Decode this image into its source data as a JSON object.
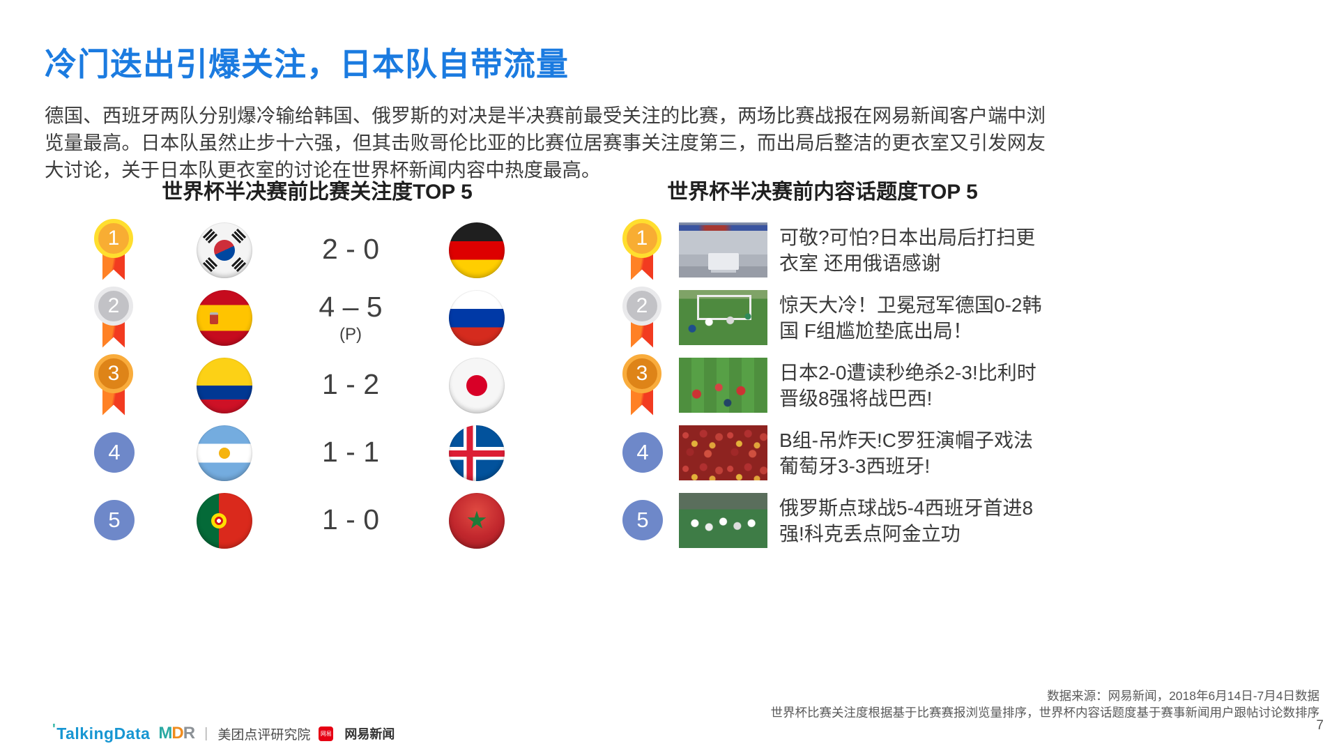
{
  "slide": {
    "title": "冷门迭出引爆关注，日本队自带流量",
    "body": "德国、西班牙两队分别爆冷输给韩国、俄罗斯的对决是半决赛前最受关注的比赛，两场比赛战报在网易新闻客户端中浏览量最高。日本队虽然止步十六强，但其击败哥伦比亚的比赛位居赛事关注度第三，而出局后整洁的更衣室又引发网友大讨论，关于日本队更衣室的讨论在世界杯新闻内容中热度最高。",
    "page_number": "7"
  },
  "left_panel": {
    "title": "世界杯半决赛前比赛关注度TOP 5",
    "rows": [
      {
        "rank": "1",
        "home_team": "South Korea",
        "score": "2 - 0",
        "score_note": "",
        "away_team": "Germany"
      },
      {
        "rank": "2",
        "home_team": "Spain",
        "score": "4 – 5",
        "score_note": "(P)",
        "away_team": "Russia"
      },
      {
        "rank": "3",
        "home_team": "Colombia",
        "score": "1 - 2",
        "score_note": "",
        "away_team": "Japan"
      },
      {
        "rank": "4",
        "home_team": "Argentina",
        "score": "1 - 1",
        "score_note": "",
        "away_team": "Iceland"
      },
      {
        "rank": "5",
        "home_team": "Portugal",
        "score": "1 - 0",
        "score_note": "",
        "away_team": "Morocco"
      }
    ]
  },
  "right_panel": {
    "title": "世界杯半决赛前内容话题度TOP 5",
    "rows": [
      {
        "rank": "1",
        "thumbnail": "japan-locker-room",
        "headline": "可敬?可怕?日本出局后打扫更衣室 还用俄语感谢"
      },
      {
        "rank": "2",
        "thumbnail": "germany-korea-match",
        "headline": "惊天大冷！卫冕冠军德国0-2韩国 F组尴尬垫底出局！"
      },
      {
        "rank": "3",
        "thumbnail": "japan-belgium-match",
        "headline": "日本2-0遭读秒绝杀2-3!比利时晋级8强将战巴西!"
      },
      {
        "rank": "4",
        "thumbnail": "portugal-spain-fans",
        "headline": "B组-吊炸天!C罗狂演帽子戏法 葡萄牙3-3西班牙!"
      },
      {
        "rank": "5",
        "thumbnail": "russia-spain-match",
        "headline": "俄罗斯点球战5-4西班牙首进8强!科克丢点阿金立功"
      }
    ]
  },
  "footer": {
    "source_line1": "数据来源：网易新闻，2018年6月14日-7月4日数据",
    "source_line2": "世界杯比赛关注度根据基于比赛赛报浏览量排序，世界杯内容话题度基于赛事新闻用户跟帖讨论数排序",
    "logos": {
      "talkingdata": "TalkingData",
      "mdr_m": "M",
      "mdr_d": "D",
      "mdr_r": "R",
      "meituan": "美团点评研究院",
      "netease_badge": "网易",
      "netease": "网易新闻"
    }
  },
  "colors": {
    "title_blue": "#1B7BE0",
    "medal_gold": "#F8AD33",
    "medal_silver": "#C2C2C6",
    "medal_bronze": "#DE8418",
    "ribbon_red": "#F23B20",
    "rank_blue": "#6E88C9"
  }
}
